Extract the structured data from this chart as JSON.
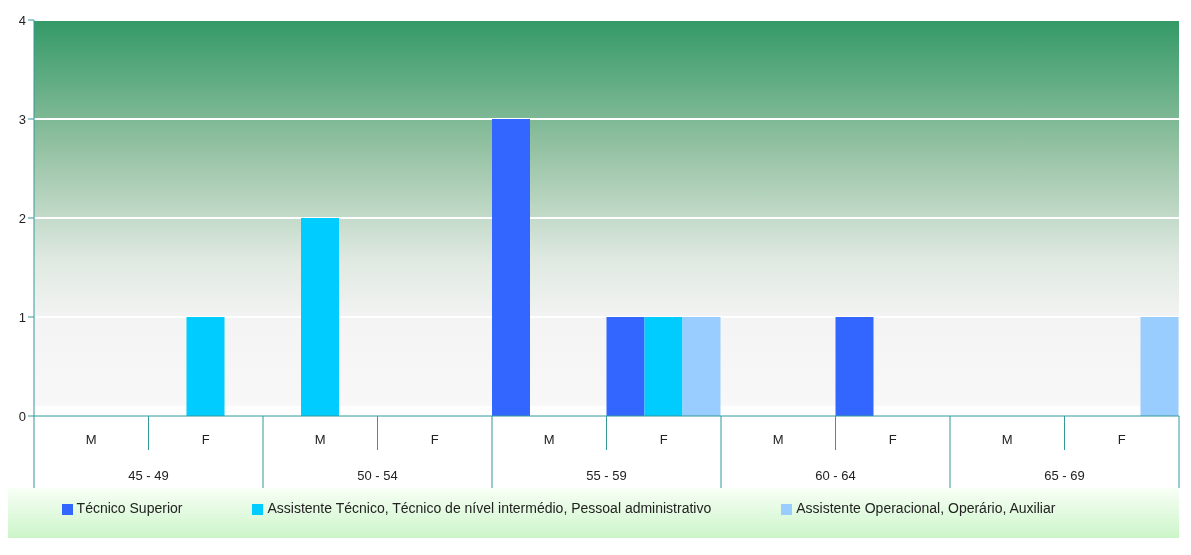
{
  "chart_data": {
    "type": "bar",
    "categories": [
      "M",
      "F",
      "M",
      "F",
      "M",
      "F",
      "M",
      "F",
      "M",
      "F"
    ],
    "annotations": [
      "45 - 49",
      "50 - 54",
      "55 - 59",
      "60 - 64",
      "65 - 69"
    ],
    "series": [
      {
        "name": "Técnico Superior",
        "color": "#3366ff",
        "values": [
          0,
          0,
          0,
          0,
          3,
          1,
          0,
          1,
          0,
          0
        ]
      },
      {
        "name": "Assistente Técnico, Técnico de nível intermédio, Pessoal administrativo",
        "color": "#00ccff",
        "values": [
          0,
          1,
          2,
          0,
          0,
          1,
          0,
          0,
          0,
          0
        ]
      },
      {
        "name": "Assistente Operacional, Operário, Auxiliar",
        "color": "#99ccff",
        "values": [
          0,
          0,
          0,
          0,
          0,
          1,
          0,
          0,
          0,
          1
        ]
      }
    ],
    "ylim": [
      0,
      4
    ],
    "yticks": [
      0,
      1,
      2,
      3,
      4
    ],
    "grid": "y",
    "legend": "bottom"
  }
}
